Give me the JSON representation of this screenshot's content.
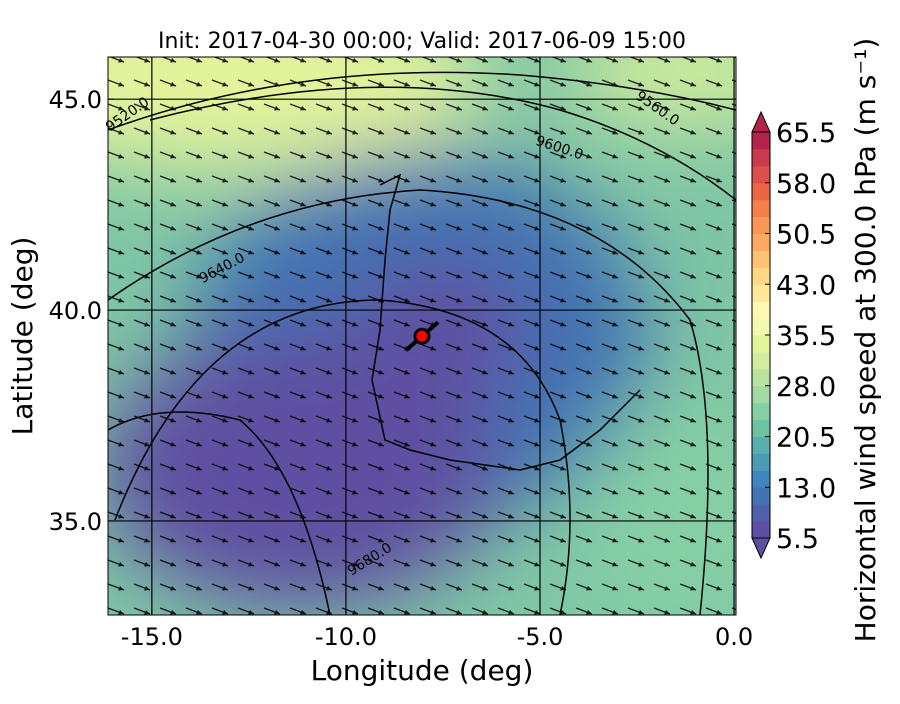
{
  "chart_data": {
    "type": "map",
    "title": "Init: 2017-04-30 00:00; Valid: 2017-06-09 15:00",
    "xlabel": "Longitude (deg)",
    "ylabel": "Latitude (deg)",
    "xlim": [
      -16.13,
      0.05
    ],
    "ylim": [
      32.77,
      46.0
    ],
    "xticks": [
      {
        "value": -15,
        "label": "-15.0"
      },
      {
        "value": -10,
        "label": "-10.0"
      },
      {
        "value": -5,
        "label": "-5.0"
      },
      {
        "value": 0,
        "label": "0.0"
      }
    ],
    "yticks": [
      {
        "value": 35,
        "label": "35.0"
      },
      {
        "value": 40,
        "label": "40.0"
      },
      {
        "value": 45,
        "label": "45.0"
      }
    ],
    "grid": true,
    "contour_labels": [
      "9520.0",
      "9560.0",
      "9600.0",
      "9640.0",
      "9680.0"
    ],
    "marker": {
      "lon": -8.04,
      "lat": 39.38,
      "color": "#ff0000"
    },
    "colorbar": {
      "label": "Horizontal wind speed at 300.0 hPa (m s⁻¹)",
      "clim": [
        5.5,
        65.5
      ],
      "ticks": [
        5.5,
        {
          "value": 13,
          "label": "13.0"
        },
        20.5,
        {
          "value": 28,
          "label": "28.0"
        },
        35.5,
        {
          "value": 43,
          "label": "43.0"
        },
        50.5,
        {
          "value": 58,
          "label": "58.0"
        },
        65.5
      ],
      "colors": [
        "#5e4fa2",
        "#5061aa",
        "#4273b3",
        "#3f86bc",
        "#4b9bb5",
        "#5aafac",
        "#6ec2a4",
        "#86cfa5",
        "#a1daa4",
        "#bae3a0",
        "#d0ec9c",
        "#e4f49b",
        "#f3faad",
        "#fdf8b2",
        "#fee999",
        "#fed884",
        "#fdc374",
        "#fdab63",
        "#fa9656",
        "#f57f4b",
        "#ec6545",
        "#dd4f4a",
        "#ca3a4e",
        "#b5224b"
      ]
    }
  }
}
